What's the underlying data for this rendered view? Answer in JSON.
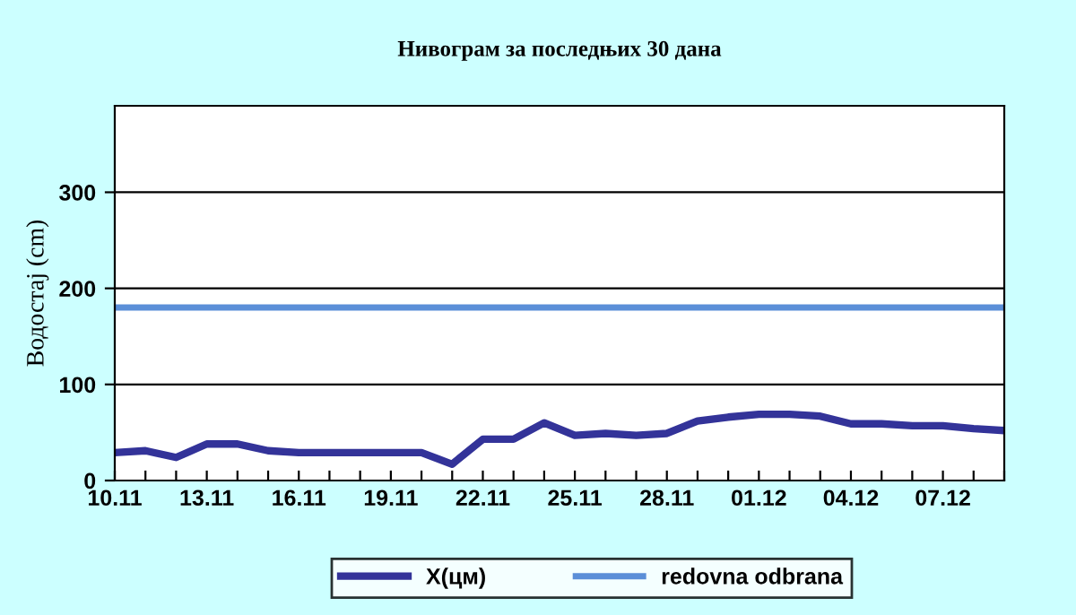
{
  "chart_data": {
    "type": "line",
    "title": "Нивограм за последњих 30 дана",
    "ylabel": "Водостај (cm)",
    "categories": [
      "10.11",
      null,
      null,
      "13.11",
      null,
      null,
      "16.11",
      null,
      null,
      "19.11",
      null,
      null,
      "22.11",
      null,
      null,
      "25.11",
      null,
      null,
      "28.11",
      null,
      null,
      "01.12",
      null,
      null,
      "04.12",
      null,
      null,
      "07.12",
      null,
      null
    ],
    "series": [
      {
        "name": "X(цм)",
        "color": "#333399",
        "values": [
          29,
          31,
          24,
          38,
          38,
          31,
          29,
          29,
          29,
          29,
          29,
          17,
          43,
          43,
          60,
          47,
          49,
          47,
          49,
          62,
          66,
          69,
          69,
          67,
          59,
          59,
          57,
          57,
          54,
          52
        ]
      }
    ],
    "ref_lines": [
      {
        "axis": "y",
        "value": 180,
        "label": "redovna odbrana",
        "color": "#5b8fd8",
        "line_style": "solid"
      }
    ],
    "ylim": [
      0,
      390
    ],
    "yticks": [
      0,
      100,
      200,
      300
    ],
    "grid": "y",
    "legend": "bottom",
    "marker": "none",
    "line_style": "solid"
  }
}
